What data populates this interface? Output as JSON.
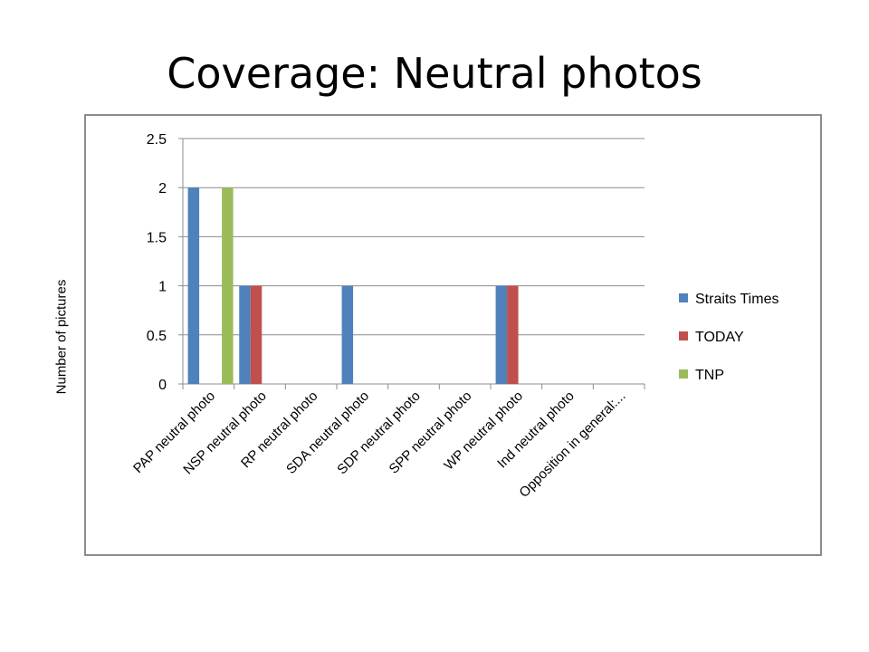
{
  "slide": {
    "title": "Coverage: Neutral photos"
  },
  "chart_data": {
    "type": "bar",
    "title": "",
    "xlabel": "",
    "ylabel": "Number of pictures",
    "ylim": [
      0,
      2.5
    ],
    "yticks": [
      "0",
      "0.5",
      "1",
      "1.5",
      "2",
      "2.5"
    ],
    "grid": true,
    "legend_position": "right",
    "categories": [
      "PAP neutral photo",
      "NSP neutral photo",
      "RP neutral photo",
      "SDA neutral photo",
      "SDP neutral photo",
      "SPP neutral photo",
      "WP neutral photo",
      "Ind neutral photo",
      "Opposition in general:..."
    ],
    "series": [
      {
        "name": "Straits Times",
        "color": "#4f81bd",
        "values": [
          2,
          1,
          0,
          1,
          0,
          0,
          1,
          0,
          0
        ]
      },
      {
        "name": "TODAY",
        "color": "#c0504d",
        "values": [
          0,
          1,
          0,
          0,
          0,
          0,
          1,
          0,
          0
        ]
      },
      {
        "name": "TNP",
        "color": "#9bbb59",
        "values": [
          2,
          0,
          0,
          0,
          0,
          0,
          0,
          0,
          0
        ]
      }
    ]
  }
}
